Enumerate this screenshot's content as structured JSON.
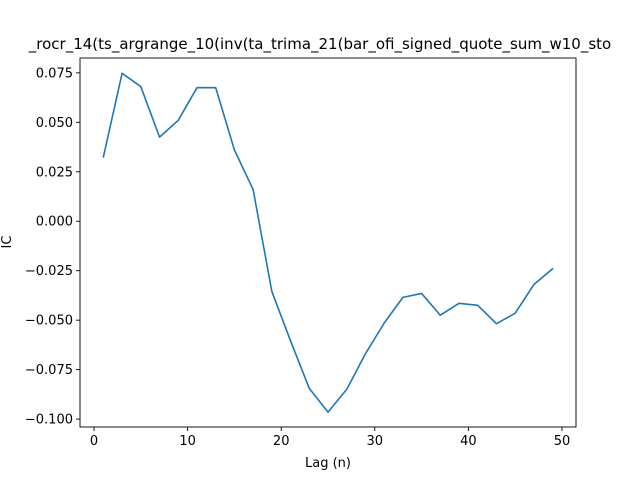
{
  "chart_data": {
    "type": "line",
    "title": "_rocr_14(ts_argrange_10(inv(ta_trima_21(bar_ofi_signed_quote_sum_w10_sto",
    "xlabel": "Lag (n)",
    "ylabel": "IC",
    "xlim": [
      -1.5,
      51.5
    ],
    "ylim": [
      -0.104,
      0.0825
    ],
    "xticks": [
      0,
      10,
      20,
      30,
      40,
      50
    ],
    "xtick_labels": [
      "0",
      "10",
      "20",
      "30",
      "40",
      "50"
    ],
    "yticks": [
      -0.1,
      -0.075,
      -0.05,
      -0.025,
      0.0,
      0.025,
      0.05,
      0.075
    ],
    "ytick_labels": [
      "−0.100",
      "−0.075",
      "−0.050",
      "−0.025",
      "0.000",
      "0.025",
      "0.050",
      "0.075"
    ],
    "grid": false,
    "line_color": "#1f77b4",
    "series": [
      {
        "x": [
          1,
          3,
          5,
          7,
          9,
          11,
          13,
          15,
          17,
          19,
          21,
          23,
          25,
          27,
          29,
          31,
          33,
          35,
          37,
          39,
          41,
          43,
          45,
          47,
          49
        ],
        "y": [
          0.0325,
          0.0748,
          0.068,
          0.0425,
          0.051,
          0.0675,
          0.0675,
          0.036,
          0.016,
          -0.0355,
          -0.0605,
          -0.0845,
          -0.0965,
          -0.085,
          -0.067,
          -0.0515,
          -0.0385,
          -0.0365,
          -0.0475,
          -0.0415,
          -0.0425,
          -0.0518,
          -0.0465,
          -0.032,
          -0.024
        ]
      }
    ]
  }
}
